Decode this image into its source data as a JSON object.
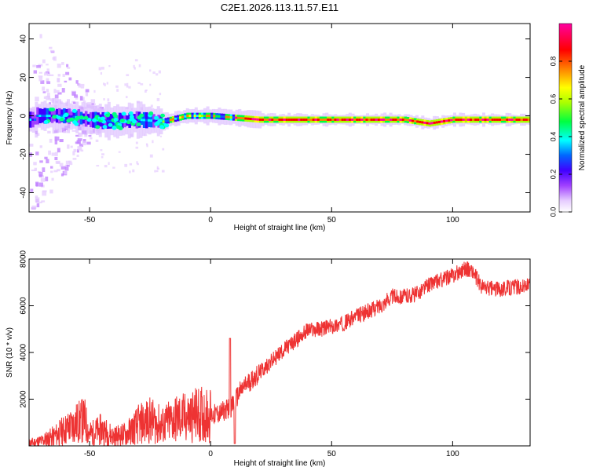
{
  "title": "C2E1.2026.113.11.57.E11",
  "chart_data": [
    {
      "type": "heatmap",
      "xlabel": "Height of straight line (km)",
      "ylabel": "Frequency (Hz)",
      "xlim": [
        -75,
        132
      ],
      "ylim": [
        -50,
        48
      ],
      "xticks": [
        -50,
        0,
        50,
        100
      ],
      "yticks": [
        -40,
        -20,
        0,
        20,
        40
      ],
      "colorbar": {
        "label": "Normalized spectral amplitude",
        "range": [
          0,
          1
        ],
        "ticks": [
          "0.0",
          "0.2",
          "0.4",
          "0.6",
          "0.8"
        ],
        "colors": [
          "#ffffff",
          "#e6ccff",
          "#a040ff",
          "#4000ff",
          "#0066ff",
          "#00ffff",
          "#00ff40",
          "#aaff00",
          "#ffff00",
          "#ff8000",
          "#ff0000",
          "#ff00a0"
        ]
      },
      "band_center_hz": [
        {
          "x": -72,
          "f": 0
        },
        {
          "x": -60,
          "f": 0
        },
        {
          "x": -50,
          "f": -2
        },
        {
          "x": -40,
          "f": -3
        },
        {
          "x": -30,
          "f": -2
        },
        {
          "x": -20,
          "f": -3
        },
        {
          "x": -10,
          "f": 0
        },
        {
          "x": 0,
          "f": 0
        },
        {
          "x": 10,
          "f": -1
        },
        {
          "x": 20,
          "f": -2
        },
        {
          "x": 40,
          "f": -2
        },
        {
          "x": 60,
          "f": -2
        },
        {
          "x": 80,
          "f": -2
        },
        {
          "x": 90,
          "f": -4
        },
        {
          "x": 100,
          "f": -2
        },
        {
          "x": 120,
          "f": -2
        },
        {
          "x": 132,
          "f": -2
        }
      ]
    },
    {
      "type": "line",
      "xlabel": "Height of straight line (km)",
      "ylabel": "SNR (10 * v/v)",
      "xlim": [
        -75,
        132
      ],
      "ylim": [
        0,
        8000
      ],
      "xticks": [
        -50,
        0,
        50,
        100
      ],
      "yticks": [
        2000,
        4000,
        6000,
        8000
      ],
      "series": [
        {
          "color": "#ee3333",
          "x": [
            -75,
            -70,
            -65,
            -60,
            -55,
            -52,
            -50,
            -45,
            -40,
            -35,
            -30,
            -25,
            -20,
            -15,
            -10,
            -5,
            0,
            4,
            7,
            9,
            12,
            15,
            20,
            25,
            30,
            35,
            40,
            45,
            50,
            55,
            60,
            65,
            70,
            75,
            80,
            85,
            90,
            95,
            100,
            105,
            108,
            112,
            118,
            125,
            132
          ],
          "y": [
            100,
            200,
            400,
            700,
            1000,
            1100,
            500,
            700,
            400,
            500,
            900,
            1100,
            850,
            1150,
            1200,
            1350,
            1300,
            1400,
            1600,
            1700,
            2300,
            2650,
            3100,
            3600,
            4100,
            4500,
            4950,
            5000,
            5100,
            5250,
            5550,
            5750,
            6000,
            6400,
            6400,
            6500,
            6900,
            7100,
            7300,
            7600,
            7500,
            6800,
            6700,
            6800,
            6850
          ]
        }
      ]
    }
  ]
}
